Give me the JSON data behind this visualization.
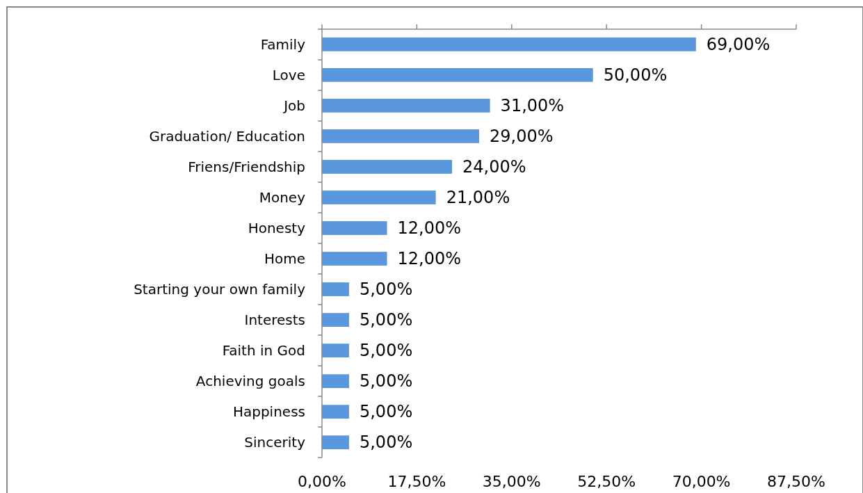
{
  "chart_data": {
    "type": "bar",
    "orientation": "horizontal",
    "categories": [
      "Family",
      "Love",
      "Job",
      "Graduation/ Education",
      "Friens/Friendship",
      "Money",
      "Honesty",
      "Home",
      "Starting your own family",
      "Interests",
      "Faith in God",
      "Achieving goals",
      "Happiness",
      "Sincerity"
    ],
    "values": [
      69,
      50,
      31,
      29,
      24,
      21,
      12,
      12,
      5,
      5,
      5,
      5,
      5,
      5
    ],
    "value_labels": [
      "69,00%",
      "50,00%",
      "31,00%",
      "29,00%",
      "24,00%",
      "21,00%",
      "12,00%",
      "12,00%",
      "5,00%",
      "5,00%",
      "5,00%",
      "5,00%",
      "5,00%",
      "5,00%"
    ],
    "color": "#5b97de",
    "xlim": [
      0,
      87.5
    ],
    "xticks": [
      {
        "value": 0,
        "label": "0,00%"
      },
      {
        "value": 17.5,
        "label": "17,50%"
      },
      {
        "value": 35,
        "label": "35,00%"
      },
      {
        "value": 52.5,
        "label": "52,50%"
      },
      {
        "value": 70,
        "label": "70,00%"
      },
      {
        "value": 87.5,
        "label": "87,50%"
      }
    ],
    "grid": false
  }
}
